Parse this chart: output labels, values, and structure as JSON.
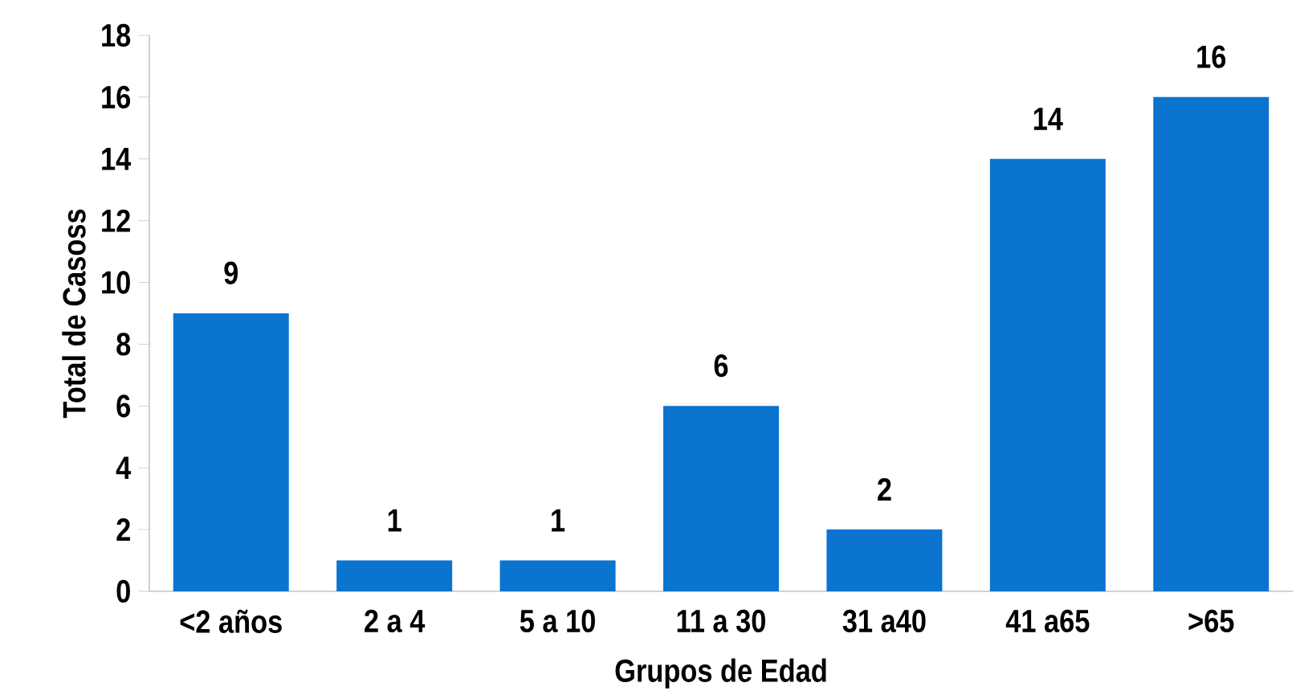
{
  "chart_data": {
    "type": "bar",
    "xlabel": "Grupos de Edad",
    "ylabel": "Total de Casoss",
    "categories": [
      "<2 años",
      "2 a 4",
      "5 a 10",
      "11 a 30",
      "31 a40",
      "41 a65",
      ">65"
    ],
    "values": [
      9,
      1,
      1,
      6,
      2,
      14,
      16
    ],
    "color": "#0a74cf",
    "data_labels": true,
    "ylim": [
      0,
      18
    ],
    "yticks": [
      0,
      2,
      4,
      6,
      8,
      10,
      12,
      14,
      16,
      18
    ],
    "grid": false
  }
}
